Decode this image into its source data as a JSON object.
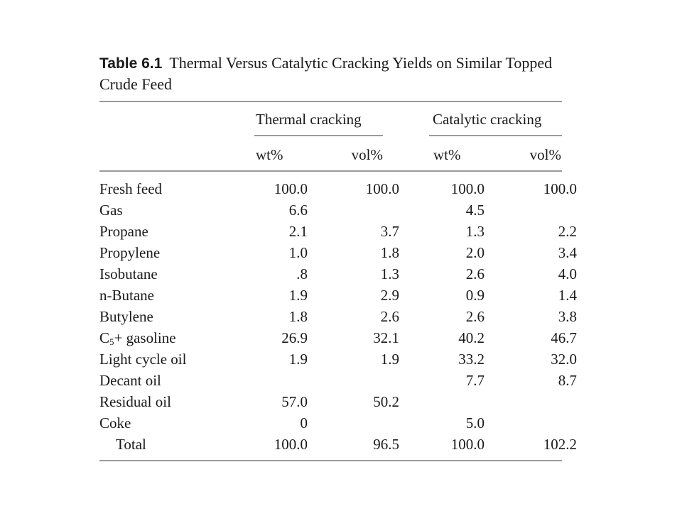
{
  "caption": {
    "number": "Table 6.1",
    "title": "Thermal Versus Catalytic Cracking Yields on Similar Topped Crude Feed"
  },
  "headers": {
    "groups": [
      "Thermal cracking",
      "Catalytic cracking"
    ],
    "units": [
      "wt%",
      "vol%",
      "wt%",
      "vol%"
    ]
  },
  "rows": [
    {
      "label": "Fresh feed",
      "values": [
        "100.0",
        "100.0",
        "100.0",
        "100.0"
      ]
    },
    {
      "label": "Gas",
      "values": [
        "6.6",
        "",
        "4.5",
        ""
      ]
    },
    {
      "label": "Propane",
      "values": [
        "2.1",
        "3.7",
        "1.3",
        "2.2"
      ]
    },
    {
      "label": "Propylene",
      "values": [
        "1.0",
        "1.8",
        "2.0",
        "3.4"
      ]
    },
    {
      "label": "Isobutane",
      "values": [
        ".8",
        "1.3",
        "2.6",
        "4.0"
      ]
    },
    {
      "label": "n-Butane",
      "values": [
        "1.9",
        "2.9",
        "0.9",
        "1.4"
      ]
    },
    {
      "label": "Butylene",
      "values": [
        "1.8",
        "2.6",
        "2.6",
        "3.8"
      ]
    },
    {
      "label": "C",
      "label_sub": "5",
      "label_rest": "+ gasoline",
      "values": [
        "26.9",
        "32.1",
        "40.2",
        "46.7"
      ]
    },
    {
      "label": "Light cycle oil",
      "values": [
        "1.9",
        "1.9",
        "33.2",
        "32.0"
      ]
    },
    {
      "label": "Decant oil",
      "values": [
        "",
        "",
        "7.7",
        "8.7"
      ]
    },
    {
      "label": "Residual oil",
      "values": [
        "57.0",
        "50.2",
        "",
        ""
      ]
    },
    {
      "label": "Coke",
      "values": [
        "0",
        "",
        "5.0",
        ""
      ]
    },
    {
      "label": "Total",
      "values": [
        "100.0",
        "96.5",
        "100.0",
        "102.2"
      ]
    }
  ]
}
